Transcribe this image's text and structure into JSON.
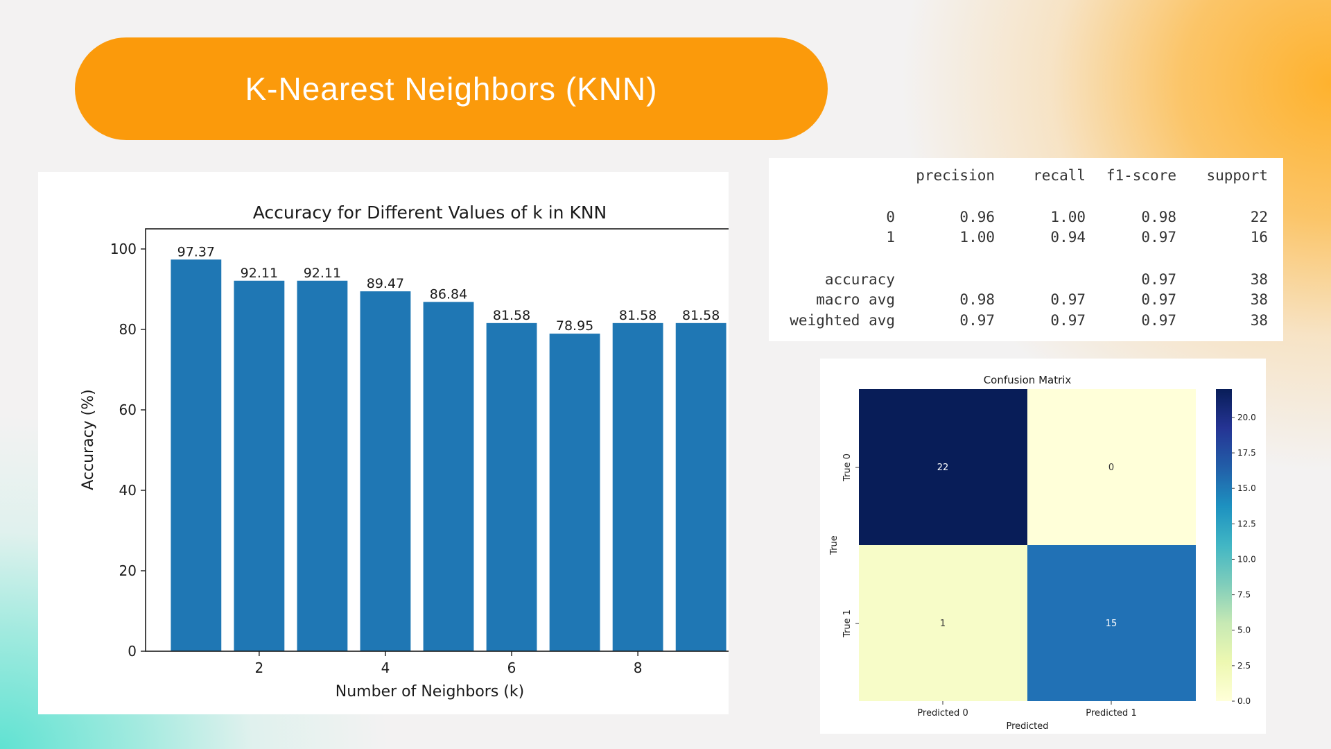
{
  "slide": {
    "title": "K-Nearest Neighbors (KNN)",
    "colors": {
      "accent": "#fb9a0b",
      "bar": "#1f77b4",
      "teal": "#60e2d2"
    }
  },
  "chart_data": [
    {
      "type": "bar",
      "title": "Accuracy for Different Values of k in KNN",
      "xlabel": "Number of Neighbors (k)",
      "ylabel": "Accuracy (%)",
      "x": [
        1,
        2,
        3,
        4,
        5,
        6,
        7,
        8,
        9
      ],
      "values": [
        97.37,
        92.11,
        92.11,
        89.47,
        86.84,
        81.58,
        78.95,
        81.58,
        81.58
      ],
      "data_labels": [
        "97.37",
        "92.11",
        "92.11",
        "89.47",
        "86.84",
        "81.58",
        "78.95",
        "81.58",
        "81.58"
      ],
      "xticks": [
        "2",
        "4",
        "6",
        "8"
      ],
      "yticks": [
        "0",
        "20",
        "40",
        "60",
        "80",
        "100"
      ],
      "ylim": [
        0,
        105
      ],
      "grid": false,
      "color": "#1f77b4"
    },
    {
      "type": "table",
      "columns": [
        "precision",
        "recall",
        "f1-score",
        "support"
      ],
      "rows": [
        {
          "label": "0",
          "values": [
            "0.96",
            "1.00",
            "0.98",
            "22"
          ]
        },
        {
          "label": "1",
          "values": [
            "1.00",
            "0.94",
            "0.97",
            "16"
          ]
        },
        {
          "label": "accuracy",
          "values": [
            "",
            "",
            "0.97",
            "38"
          ]
        },
        {
          "label": "macro avg",
          "values": [
            "0.98",
            "0.97",
            "0.97",
            "38"
          ]
        },
        {
          "label": "weighted avg",
          "values": [
            "0.97",
            "0.97",
            "0.97",
            "38"
          ]
        }
      ]
    },
    {
      "type": "heatmap",
      "title": "Confusion Matrix",
      "xlabel": "Predicted",
      "ylabel": "True",
      "x_categories": [
        "Predicted 0",
        "Predicted 1"
      ],
      "y_categories": [
        "True 0",
        "True 1"
      ],
      "values": [
        [
          22,
          0
        ],
        [
          1,
          15
        ]
      ],
      "cell_labels": [
        [
          "22",
          "0"
        ],
        [
          "1",
          "15"
        ]
      ],
      "cell_colors": [
        [
          "#081d58",
          "#ffffd9"
        ],
        [
          "#f7fcc8",
          "#2171b5"
        ]
      ],
      "colorbar_ticks": [
        "0.0",
        "2.5",
        "5.0",
        "7.5",
        "10.0",
        "12.5",
        "15.0",
        "17.5",
        "20.0"
      ],
      "colorbar_range": [
        0,
        22
      ],
      "colormap": "YlGnBu"
    }
  ]
}
